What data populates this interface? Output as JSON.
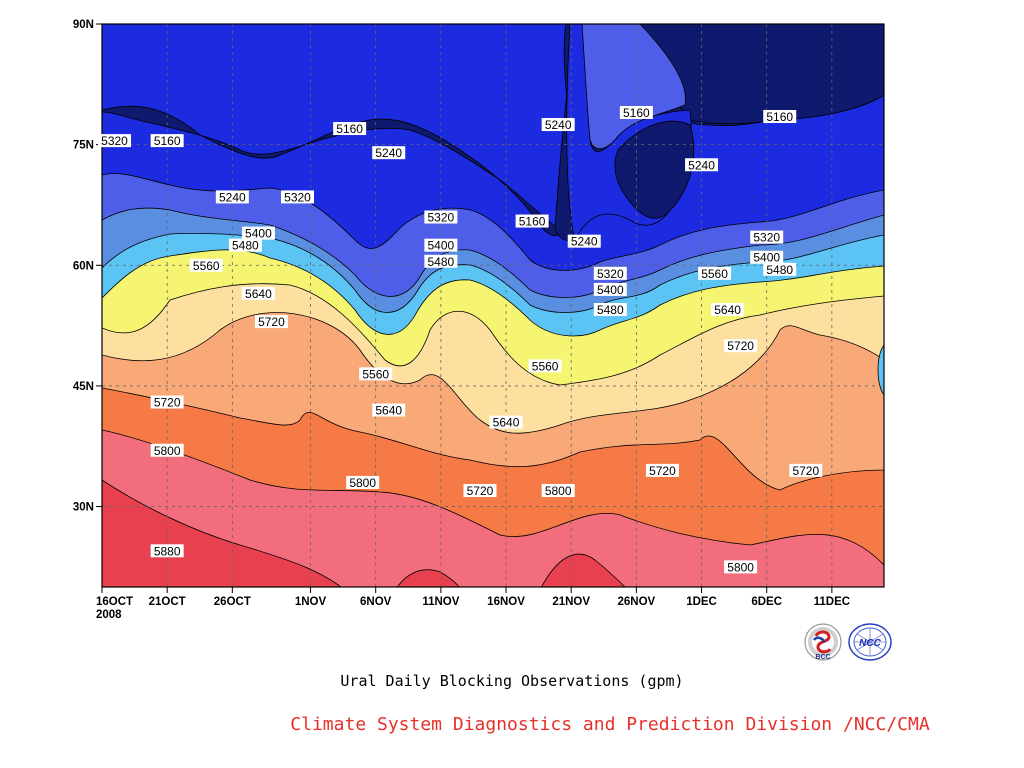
{
  "chart_data": {
    "type": "heatmap",
    "title": "",
    "xlabel": "",
    "ylabel": "",
    "x_ticks": [
      "16OCT\n2008",
      "21OCT",
      "26OCT",
      "1NOV",
      "6NOV",
      "11NOV",
      "16NOV",
      "21NOV",
      "26NOV",
      "1DEC",
      "6DEC",
      "11DEC"
    ],
    "x_range": [
      "2008-10-16",
      "2008-12-15"
    ],
    "y_ticks": [
      "30N",
      "45N",
      "60N",
      "75N",
      "90N"
    ],
    "y_range": [
      20,
      90
    ],
    "grid": true,
    "contour_levels": [
      5160,
      5240,
      5320,
      5400,
      5480,
      5560,
      5640,
      5720,
      5800,
      5880
    ],
    "fill_colors": [
      "#0f1a6e",
      "#1c2ae0",
      "#4f5ee8",
      "#5a8ee0",
      "#5bc4f5",
      "#f5f572",
      "#fde0a0",
      "#f9a877",
      "#f57a45",
      "#f26e7c",
      "#e8404e"
    ],
    "contour_labels": [
      {
        "t": "5160",
        "date": "2008-10-21",
        "lat": 75.5
      },
      {
        "t": "5320",
        "date": "2008-10-16",
        "lat": 75.5
      },
      {
        "t": "5160",
        "date": "2008-11-04",
        "lat": 77.0
      },
      {
        "t": "5240",
        "date": "2008-11-07",
        "lat": 74.0
      },
      {
        "t": "5240",
        "date": "2008-10-26",
        "lat": 68.5
      },
      {
        "t": "5320",
        "date": "2008-10-31",
        "lat": 68.5
      },
      {
        "t": "5240",
        "date": "2008-11-20",
        "lat": 77.5
      },
      {
        "t": "5160",
        "date": "2008-11-26",
        "lat": 79.0
      },
      {
        "t": "5160",
        "date": "2008-12-07",
        "lat": 78.5
      },
      {
        "t": "5240",
        "date": "2008-12-01",
        "lat": 72.5
      },
      {
        "t": "5320",
        "date": "2008-11-11",
        "lat": 66.0
      },
      {
        "t": "5160",
        "date": "2008-11-18",
        "lat": 65.5
      },
      {
        "t": "5240",
        "date": "2008-11-22",
        "lat": 63.0
      },
      {
        "t": "5400",
        "date": "2008-10-28",
        "lat": 64.0
      },
      {
        "t": "5480",
        "date": "2008-10-27",
        "lat": 62.5
      },
      {
        "t": "5400",
        "date": "2008-11-11",
        "lat": 62.5
      },
      {
        "t": "5480",
        "date": "2008-11-11",
        "lat": 60.5
      },
      {
        "t": "5320",
        "date": "2008-12-06",
        "lat": 63.5
      },
      {
        "t": "5400",
        "date": "2008-12-06",
        "lat": 61.0
      },
      {
        "t": "5480",
        "date": "2008-12-07",
        "lat": 59.5
      },
      {
        "t": "5560",
        "date": "2008-10-24",
        "lat": 60.0
      },
      {
        "t": "5640",
        "date": "2008-10-28",
        "lat": 56.5
      },
      {
        "t": "5720",
        "date": "2008-10-29",
        "lat": 53.0
      },
      {
        "t": "5320",
        "date": "2008-11-24",
        "lat": 59.0
      },
      {
        "t": "5400",
        "date": "2008-11-24",
        "lat": 57.0
      },
      {
        "t": "5480",
        "date": "2008-11-24",
        "lat": 54.5
      },
      {
        "t": "5560",
        "date": "2008-12-02",
        "lat": 59.0
      },
      {
        "t": "5640",
        "date": "2008-12-03",
        "lat": 54.5
      },
      {
        "t": "5720",
        "date": "2008-12-04",
        "lat": 50.0
      },
      {
        "t": "5560",
        "date": "2008-11-06",
        "lat": 46.5
      },
      {
        "t": "5560",
        "date": "2008-11-19",
        "lat": 47.5
      },
      {
        "t": "5640",
        "date": "2008-11-07",
        "lat": 42.0
      },
      {
        "t": "5640",
        "date": "2008-11-16",
        "lat": 40.5
      },
      {
        "t": "5720",
        "date": "2008-10-21",
        "lat": 43.0
      },
      {
        "t": "5800",
        "date": "2008-10-21",
        "lat": 37.0
      },
      {
        "t": "5800",
        "date": "2008-11-05",
        "lat": 33.0
      },
      {
        "t": "5720",
        "date": "2008-11-14",
        "lat": 32.0
      },
      {
        "t": "5800",
        "date": "2008-11-20",
        "lat": 32.0
      },
      {
        "t": "5720",
        "date": "2008-11-28",
        "lat": 34.5
      },
      {
        "t": "5720",
        "date": "2008-12-09",
        "lat": 34.5
      },
      {
        "t": "5880",
        "date": "2008-10-21",
        "lat": 24.5
      },
      {
        "t": "5800",
        "date": "2008-12-04",
        "lat": 22.5
      }
    ]
  },
  "caption": "Ural Daily Blocking Observations (gpm)",
  "credit": "Climate System Diagnostics and Prediction Division /NCC/CMA",
  "logos": [
    {
      "icon": "bcc-logo-icon",
      "text": "BCC"
    },
    {
      "icon": "ncc-logo-icon",
      "text": "NCC"
    }
  ]
}
